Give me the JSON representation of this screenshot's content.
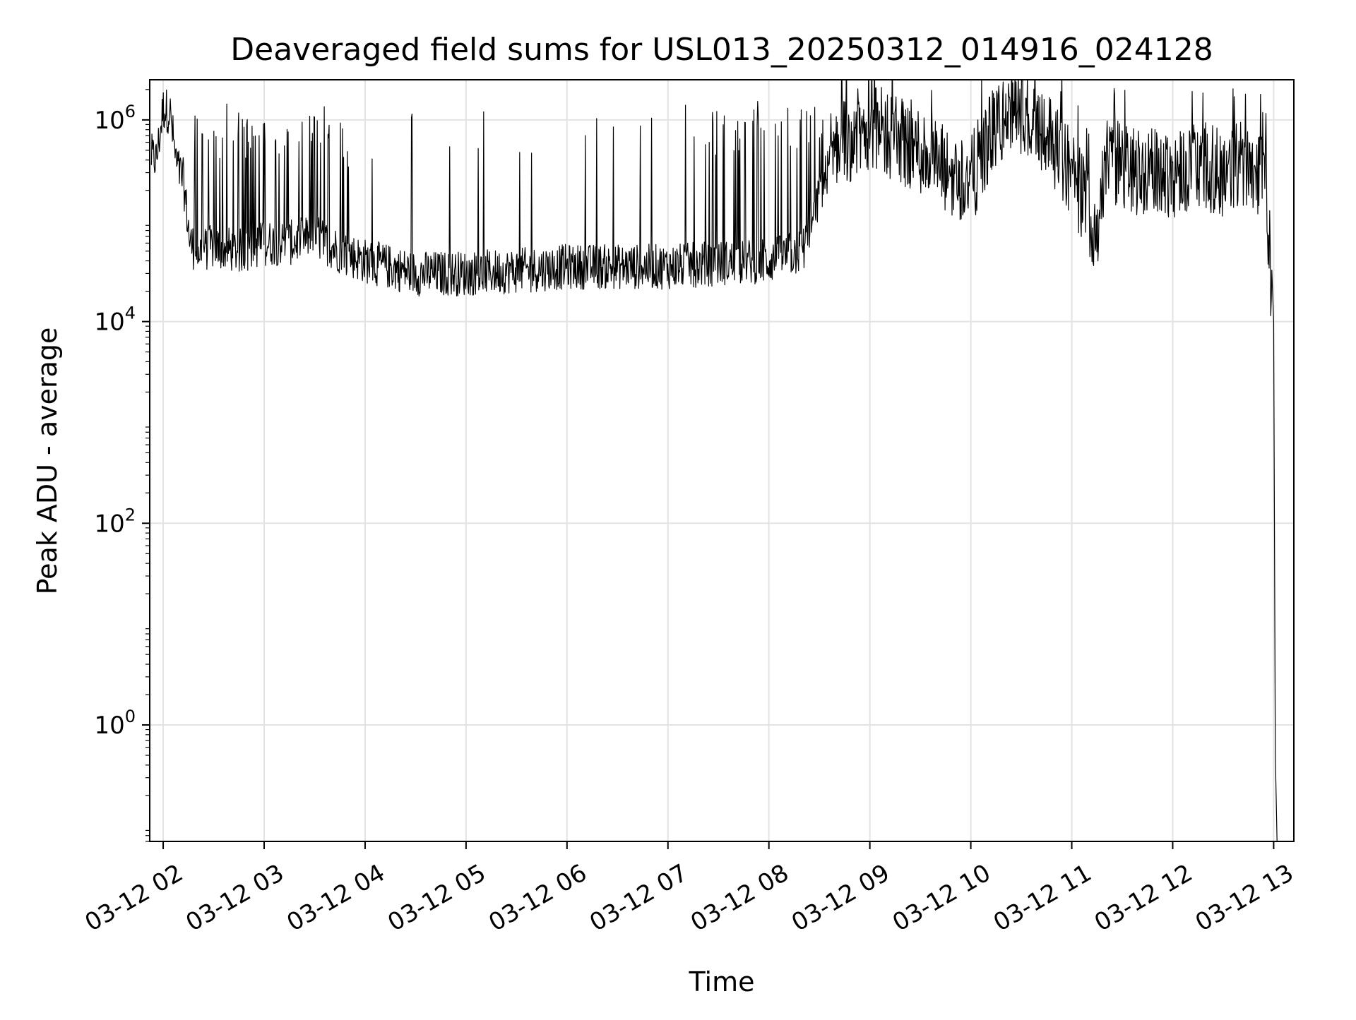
{
  "chart_data": {
    "type": "line",
    "title": "Deaveraged field sums for USL013_20250312_014916_024128",
    "xlabel": "Time",
    "ylabel": "Peak ADU - average",
    "yscale": "log",
    "ylim": [
      0.07,
      2500000
    ],
    "xlim": [
      "03-12 01:52",
      "03-12 13:12"
    ],
    "grid": true,
    "x_ticks": [
      "03-12 02",
      "03-12 03",
      "03-12 04",
      "03-12 05",
      "03-12 06",
      "03-12 07",
      "03-12 08",
      "03-12 09",
      "03-12 10",
      "03-12 11",
      "03-12 12",
      "03-12 13"
    ],
    "y_ticks": [
      {
        "value": 1,
        "base": "10",
        "exp": "0"
      },
      {
        "value": 100,
        "base": "10",
        "exp": "2"
      },
      {
        "value": 10000,
        "base": "10",
        "exp": "4"
      },
      {
        "value": 1000000,
        "base": "10",
        "exp": "6"
      }
    ],
    "series": [
      {
        "color": "#000000",
        "x": [
          "03-12 01:52",
          "03-12 01:56",
          "03-12 02:00",
          "03-12 02:04",
          "03-12 02:08",
          "03-12 02:12",
          "03-12 02:16",
          "03-12 02:20",
          "03-12 02:30",
          "03-12 02:45",
          "03-12 03:00",
          "03-12 03:15",
          "03-12 03:30",
          "03-12 03:45",
          "03-12 04:00",
          "03-12 04:30",
          "03-12 05:00",
          "03-12 05:30",
          "03-12 06:00",
          "03-12 06:30",
          "03-12 07:00",
          "03-12 07:30",
          "03-12 08:00",
          "03-12 08:20",
          "03-12 08:40",
          "03-12 09:00",
          "03-12 09:15",
          "03-12 09:30",
          "03-12 09:45",
          "03-12 10:00",
          "03-12 10:15",
          "03-12 10:30",
          "03-12 10:45",
          "03-12 11:00",
          "03-12 11:15",
          "03-12 11:20",
          "03-12 11:30",
          "03-12 11:45",
          "03-12 12:00",
          "03-12 12:15",
          "03-12 12:30",
          "03-12 12:45",
          "03-12 12:55",
          "03-12 13:00",
          "03-12 13:01",
          "03-12 13:02"
        ],
        "y": [
          450000,
          400000,
          1300000,
          1200000,
          350000,
          250000,
          60000,
          50000,
          55000,
          50000,
          60000,
          60000,
          70000,
          50000,
          40000,
          30000,
          30000,
          32000,
          35000,
          35000,
          35000,
          38000,
          40000,
          50000,
          600000,
          800000,
          700000,
          500000,
          300000,
          250000,
          900000,
          1200000,
          800000,
          300000,
          80000,
          400000,
          350000,
          300000,
          300000,
          350000,
          300000,
          400000,
          250000,
          10000,
          0.5,
          0.07
        ]
      }
    ],
    "noise": {
      "description_free": true,
      "spike_top": 900000
    }
  }
}
